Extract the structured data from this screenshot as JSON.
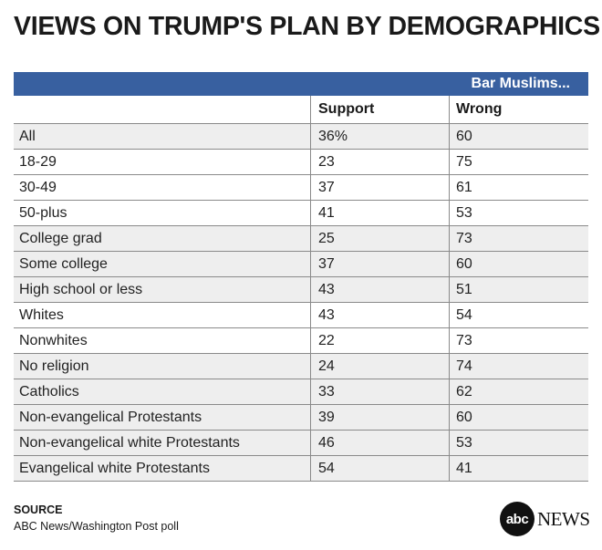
{
  "title": "VIEWS ON TRUMP'S PLAN BY DEMOGRAPHICS",
  "chart_data": {
    "type": "table",
    "group_header": "Bar Muslims...",
    "columns": [
      "",
      "Support",
      "Wrong"
    ],
    "rows": [
      {
        "label": "All",
        "support": "36%",
        "wrong": "60",
        "shaded": true
      },
      {
        "label": "18-29",
        "support": "23",
        "wrong": "75",
        "shaded": false
      },
      {
        "label": "30-49",
        "support": "37",
        "wrong": "61",
        "shaded": false
      },
      {
        "label": "50-plus",
        "support": "41",
        "wrong": "53",
        "shaded": false
      },
      {
        "label": "College grad",
        "support": "25",
        "wrong": "73",
        "shaded": true
      },
      {
        "label": "Some college",
        "support": "37",
        "wrong": "60",
        "shaded": true
      },
      {
        "label": "High school or less",
        "support": "43",
        "wrong": "51",
        "shaded": true
      },
      {
        "label": "Whites",
        "support": "43",
        "wrong": "54",
        "shaded": false
      },
      {
        "label": "Nonwhites",
        "support": "22",
        "wrong": "73",
        "shaded": false
      },
      {
        "label": "No religion",
        "support": "24",
        "wrong": "74",
        "shaded": true
      },
      {
        "label": "Catholics",
        "support": "33",
        "wrong": "62",
        "shaded": true
      },
      {
        "label": "Non-evangelical Protestants",
        "support": "39",
        "wrong": "60",
        "shaded": true
      },
      {
        "label": "Non-evangelical white Protestants",
        "support": "46",
        "wrong": "53",
        "shaded": true
      },
      {
        "label": "Evangelical white Protestants",
        "support": "54",
        "wrong": "41",
        "shaded": true
      }
    ]
  },
  "source": {
    "label": "SOURCE",
    "text": "ABC News/Washington Post poll"
  },
  "logo": {
    "circle_text": "abc",
    "word": "NEWS"
  },
  "colors": {
    "band": "#3860a0",
    "shade": "#eeeeee"
  }
}
